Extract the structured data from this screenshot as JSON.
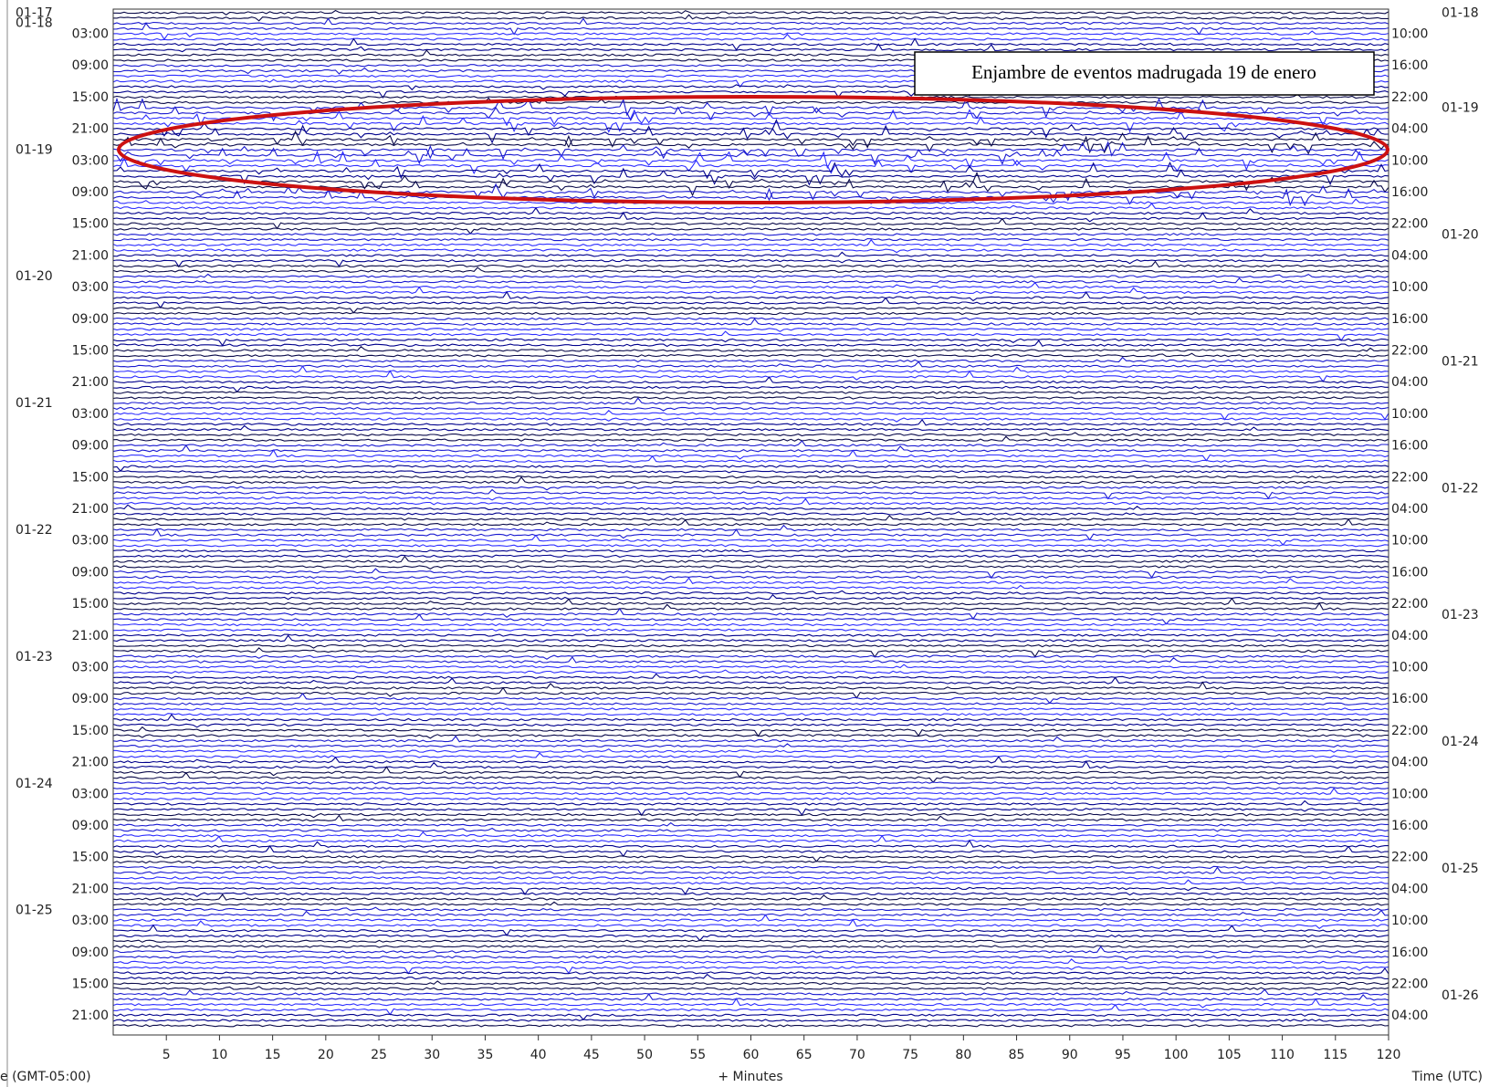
{
  "chart_data": {
    "type": "helicorder",
    "annotation": "Enjambre de eventos madrugada 19 de enero",
    "xlabel": "+ Minutes",
    "left_axis_label": "e (GMT-05:00)",
    "right_axis_label": "Time (UTC)",
    "xlim": [
      0,
      120
    ],
    "xticks": [
      5,
      10,
      15,
      20,
      25,
      30,
      35,
      40,
      45,
      50,
      55,
      60,
      65,
      70,
      75,
      80,
      85,
      90,
      95,
      100,
      105,
      110,
      115,
      120
    ],
    "left_dates": [
      "01-17",
      "01-18",
      "01-19",
      "01-20",
      "01-21",
      "01-22",
      "01-23",
      "01-24",
      "01-25"
    ],
    "left_times": [
      "03:00",
      "09:00",
      "15:00",
      "21:00",
      "03:00",
      "09:00",
      "15:00",
      "21:00",
      "03:00",
      "09:00",
      "15:00",
      "21:00",
      "03:00",
      "09:00",
      "15:00",
      "21:00",
      "03:00",
      "09:00",
      "15:00",
      "21:00",
      "03:00",
      "09:00",
      "15:00",
      "21:00",
      "03:00",
      "09:00",
      "15:00",
      "21:00",
      "03:00",
      "09:00",
      "15:00",
      "21:00"
    ],
    "right_times": [
      "10:00",
      "16:00",
      "22:00",
      "04:00",
      "10:00",
      "16:00",
      "22:00",
      "04:00",
      "10:00",
      "16:00",
      "22:00",
      "04:00",
      "10:00",
      "16:00",
      "22:00",
      "04:00",
      "10:00",
      "16:00",
      "22:00",
      "04:00",
      "10:00",
      "16:00",
      "22:00",
      "04:00",
      "10:00",
      "16:00",
      "22:00",
      "04:00",
      "10:00",
      "16:00",
      "22:00",
      "04:00"
    ],
    "right_dates": [
      "01-18",
      "01-19",
      "01-20",
      "01-21",
      "01-22",
      "01-23",
      "01-24",
      "01-25",
      "01-26"
    ]
  }
}
